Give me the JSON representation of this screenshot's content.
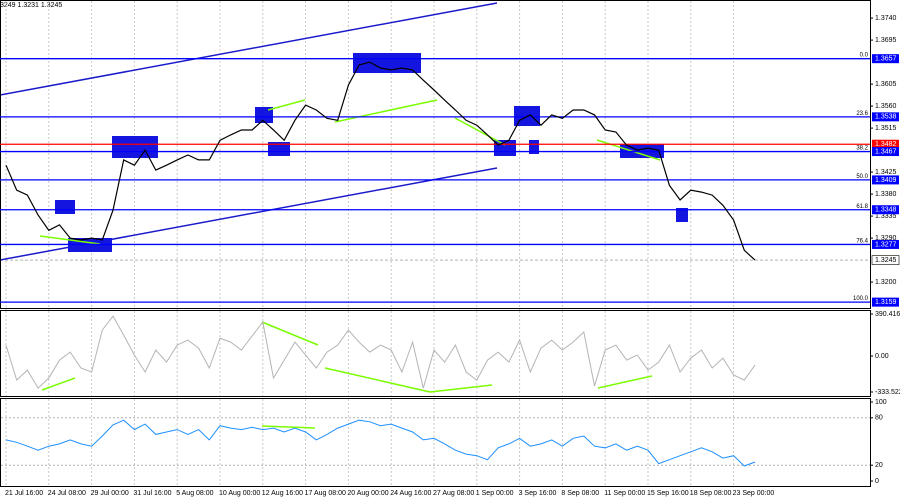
{
  "chart_data": [
    {
      "type": "line",
      "header": "3249 1.3231 1.3245",
      "color": "#000000",
      "values": [
        1.3439,
        1.3388,
        1.3378,
        1.3337,
        1.3306,
        1.3317,
        1.329,
        1.3286,
        1.329,
        1.3286,
        1.3347,
        1.345,
        1.3439,
        1.347,
        1.3429,
        1.3439,
        1.345,
        1.346,
        1.345,
        1.345,
        1.349,
        1.3501,
        1.3511,
        1.3511,
        1.3531,
        1.3511,
        1.349,
        1.3531,
        1.3562,
        1.3552,
        1.3535,
        1.3531,
        1.3603,
        1.3644,
        1.365,
        1.3638,
        1.3634,
        1.3638,
        1.3634,
        1.3613,
        1.3593,
        1.3572,
        1.3552,
        1.3531,
        1.3521,
        1.3501,
        1.348,
        1.349,
        1.3531,
        1.3542,
        1.3521,
        1.3542,
        1.3535,
        1.3552,
        1.3552,
        1.3542,
        1.3511,
        1.3507,
        1.348,
        1.347,
        1.3474,
        1.347,
        1.3398,
        1.3368,
        1.3388,
        1.3384,
        1.3378,
        1.3357,
        1.3327,
        1.3265,
        1.3245
      ],
      "ylim": [
        1.3147,
        1.3777
      ],
      "yticks": [
        {
          "value": 1.374,
          "label": "1.3740"
        },
        1.3695,
        1.3605,
        {
          "value": 1.356,
          "label": "1.3560"
        },
        1.3515,
        1.3425,
        {
          "value": 1.338,
          "label": "1.3380"
        },
        1.3335,
        {
          "value": 1.329,
          "label": "1.3290"
        },
        {
          "value": 1.32,
          "label": "1.3200"
        }
      ],
      "levels": [
        {
          "value": 1.3657,
          "label": "0.0",
          "color": "#0000ff"
        },
        {
          "value": 1.3538,
          "label": "23.6",
          "color": "#0000ff"
        },
        {
          "value": 1.3482,
          "color": "#ff0000"
        },
        {
          "value": 1.3467,
          "label": "38.2",
          "color": "#0000ff"
        },
        {
          "value": 1.3409,
          "label": "50.0",
          "color": "#0000ff"
        },
        {
          "value": 1.3348,
          "label": "61.8",
          "color": "#0000ff"
        },
        {
          "value": 1.3277,
          "label": "76.4",
          "color": "#0000ff"
        },
        {
          "value": 1.3159,
          "label": "100.0",
          "color": "#0000ff"
        }
      ],
      "last_price": 1.3245
    },
    {
      "type": "line",
      "color": "#b4b4b4",
      "values": [
        102,
        -223,
        -130,
        -297,
        -204,
        -37,
        37,
        -111,
        -148,
        241,
        371,
        195,
        9,
        -148,
        56,
        -56,
        102,
        148,
        74,
        -111,
        167,
        130,
        56,
        186,
        316,
        -204,
        -37,
        130,
        9,
        -111,
        37,
        102,
        241,
        130,
        37,
        102,
        56,
        -148,
        130,
        -297,
        56,
        -56,
        102,
        -148,
        -223,
        -37,
        37,
        -56,
        148,
        -148,
        74,
        148,
        56,
        130,
        223,
        -278,
        56,
        102,
        -37,
        9,
        -130,
        -56,
        102,
        -148,
        -19,
        56,
        -111,
        -19,
        -176,
        -223,
        -84
      ],
      "ylim": [
        -333.522,
        390.4163
      ],
      "yticks": [
        390.4163,
        {
          "value": 0,
          "label": "0.00"
        },
        -333.522
      ]
    },
    {
      "type": "line",
      "color": "#1e90ff",
      "categories": [
        "21 Jul 16:00",
        null,
        null,
        null,
        "24 Jul 08:00",
        null,
        null,
        null,
        "29 Jul 00:00",
        null,
        null,
        null,
        "31 Jul 16:00",
        null,
        null,
        null,
        "5 Aug 08:00",
        null,
        null,
        null,
        "10 Aug 00:00",
        null,
        null,
        null,
        "12 Aug 16:00",
        null,
        null,
        null,
        "17 Aug 08:00",
        null,
        null,
        null,
        "20 Aug 00:00",
        null,
        null,
        null,
        "24 Aug 16:00",
        null,
        null,
        null,
        "27 Aug 08:00",
        null,
        null,
        null,
        "1 Sep 00:00",
        null,
        null,
        null,
        "3 Sep 16:00",
        null,
        null,
        null,
        "8 Sep 08:00",
        null,
        null,
        null,
        "11 Sep 00:00",
        null,
        null,
        null,
        "15 Sep 16:00",
        null,
        null,
        null,
        "18 Sep 08:00",
        null,
        null,
        null,
        "23 Sep 00:00",
        null,
        null
      ],
      "values": [
        52,
        49,
        44,
        39,
        44,
        47,
        52,
        47,
        44,
        57,
        71,
        77,
        65,
        72,
        59,
        62,
        65,
        59,
        65,
        52,
        70,
        67,
        65,
        68,
        65,
        67,
        62,
        67,
        62,
        52,
        59,
        67,
        72,
        77,
        75,
        70,
        72,
        67,
        62,
        52,
        54,
        47,
        39,
        34,
        32,
        27,
        42,
        47,
        54,
        44,
        47,
        52,
        44,
        54,
        57,
        44,
        42,
        47,
        39,
        44,
        39,
        22,
        27,
        32,
        37,
        42,
        37,
        29,
        32,
        19,
        24
      ],
      "ylim": [
        0,
        100
      ],
      "yticks": [
        100,
        80,
        20,
        0
      ],
      "grid": true
    }
  ]
}
